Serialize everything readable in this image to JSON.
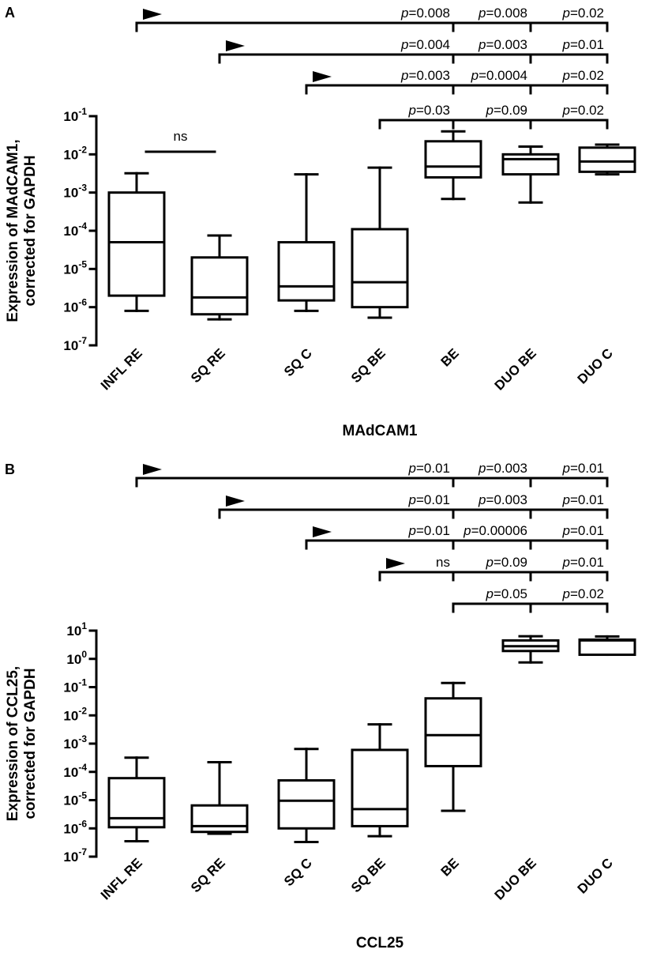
{
  "chart_data": [
    {
      "panel": "A",
      "type": "box",
      "xlabel": "MAdCAM1",
      "ylabel_line1": "Expression of MAdCAM1,",
      "ylabel_line2": "corrected for GAPDH",
      "yscale": "log10",
      "ylim_exp": [
        -7,
        -1
      ],
      "yticks": [
        {
          "base": "10",
          "exp": "-1"
        },
        {
          "base": "10",
          "exp": "-2"
        },
        {
          "base": "10",
          "exp": "-3"
        },
        {
          "base": "10",
          "exp": "-4"
        },
        {
          "base": "10",
          "exp": "-5"
        },
        {
          "base": "10",
          "exp": "-6"
        },
        {
          "base": "10",
          "exp": "-7"
        }
      ],
      "categories": [
        "INFL RE",
        "SQ RE",
        "SQ C",
        "SQ BE",
        "BE",
        "DUO BE",
        "DUO C"
      ],
      "boxes": [
        {
          "min": 8e-07,
          "q1": 2e-06,
          "median": 5e-05,
          "q3": 0.001,
          "max": 0.0032
        },
        {
          "min": 4.8e-07,
          "q1": 6.5e-07,
          "median": 1.8e-06,
          "q3": 2e-05,
          "max": 7.5e-05
        },
        {
          "min": 8e-07,
          "q1": 1.5e-06,
          "median": 3.5e-06,
          "q3": 5e-05,
          "max": 0.003
        },
        {
          "min": 5.3e-07,
          "q1": 1e-06,
          "median": 4.5e-06,
          "q3": 0.00011,
          "max": 0.0045
        },
        {
          "min": 0.00068,
          "q1": 0.0025,
          "median": 0.0048,
          "q3": 0.022,
          "max": 0.04
        },
        {
          "min": 0.00055,
          "q1": 0.003,
          "median": 0.0075,
          "q3": 0.01,
          "max": 0.016
        },
        {
          "min": 0.003,
          "q1": 0.0035,
          "median": 0.0065,
          "q3": 0.015,
          "max": 0.018
        }
      ],
      "annotations": [
        {
          "kind": "ns",
          "from": 0,
          "to": 1,
          "label": "ns"
        }
      ],
      "comparisons": [
        {
          "from": 0,
          "arrow": true,
          "labels": [
            {
              "it": "p",
              "val": "=0.008"
            },
            {
              "it": "p",
              "val": "=0.008"
            },
            {
              "it": "p",
              "val": "=0.02"
            }
          ]
        },
        {
          "from": 1,
          "arrow": true,
          "labels": [
            {
              "it": "p",
              "val": "=0.004"
            },
            {
              "it": "p",
              "val": "=0.003"
            },
            {
              "it": "p",
              "val": "=0.01"
            }
          ]
        },
        {
          "from": 2,
          "arrow": true,
          "labels": [
            {
              "it": "p",
              "val": "=0.003"
            },
            {
              "it": "p",
              "val": "=0.0004"
            },
            {
              "it": "p",
              "val": "=0.02"
            }
          ]
        },
        {
          "from": 3,
          "arrow": false,
          "labels": [
            {
              "it": "p",
              "val": "=0.03"
            },
            {
              "it": "p",
              "val": "=0.09"
            },
            {
              "it": "p",
              "val": "=0.02"
            }
          ]
        }
      ]
    },
    {
      "panel": "B",
      "type": "box",
      "xlabel": "CCL25",
      "ylabel_line1": "Expression of CCL25,",
      "ylabel_line2": "corrected for GAPDH",
      "yscale": "log10",
      "ylim_exp": [
        -7,
        1
      ],
      "yticks": [
        {
          "base": "10",
          "exp": "1"
        },
        {
          "base": "10",
          "exp": "0"
        },
        {
          "base": "10",
          "exp": "-1"
        },
        {
          "base": "10",
          "exp": "-2"
        },
        {
          "base": "10",
          "exp": "-3"
        },
        {
          "base": "10",
          "exp": "-4"
        },
        {
          "base": "10",
          "exp": "-5"
        },
        {
          "base": "10",
          "exp": "-6"
        },
        {
          "base": "10",
          "exp": "-7"
        }
      ],
      "categories": [
        "INFL RE",
        "SQ RE",
        "SQ C",
        "SQ BE",
        "BE",
        "DUO BE",
        "DUO C"
      ],
      "boxes": [
        {
          "min": 3.5e-07,
          "q1": 1.1e-06,
          "median": 2.3e-06,
          "q3": 6e-05,
          "max": 0.00032
        },
        {
          "min": 6.5e-07,
          "q1": 7.5e-07,
          "median": 1.2e-06,
          "q3": 6.5e-06,
          "max": 0.00022
        },
        {
          "min": 3.3e-07,
          "q1": 1e-06,
          "median": 9.5e-06,
          "q3": 5e-05,
          "max": 0.00065
        },
        {
          "min": 5.3e-07,
          "q1": 1.2e-06,
          "median": 4.8e-06,
          "q3": 0.0006,
          "max": 0.0048
        },
        {
          "min": 4.2e-06,
          "q1": 0.00016,
          "median": 0.002,
          "q3": 0.04,
          "max": 0.14
        },
        {
          "min": 0.75,
          "q1": 1.9,
          "median": 2.8,
          "q3": 4.5,
          "max": 6.3
        },
        {
          "min": 1.4,
          "q1": 1.4,
          "median": 4.5,
          "q3": 4.8,
          "max": 6.2
        }
      ],
      "annotations": [],
      "comparisons": [
        {
          "from": 0,
          "arrow": true,
          "labels": [
            {
              "it": "p",
              "val": "=0.01"
            },
            {
              "it": "p",
              "val": "=0.003"
            },
            {
              "it": "p",
              "val": "=0.01"
            }
          ]
        },
        {
          "from": 1,
          "arrow": true,
          "labels": [
            {
              "it": "p",
              "val": "=0.01"
            },
            {
              "it": "p",
              "val": "=0.003"
            },
            {
              "it": "p",
              "val": "=0.01"
            }
          ]
        },
        {
          "from": 2,
          "arrow": true,
          "labels": [
            {
              "it": "p",
              "val": "=0.01"
            },
            {
              "it": "p",
              "val": "=0.00006"
            },
            {
              "it": "p",
              "val": "=0.01"
            }
          ]
        },
        {
          "from": 3,
          "arrow": true,
          "labels": [
            {
              "it": "",
              "val": "ns"
            },
            {
              "it": "p",
              "val": "=0.09"
            },
            {
              "it": "p",
              "val": "=0.01"
            }
          ]
        },
        {
          "from": 4,
          "arrow": false,
          "labels": [
            {
              "it": "p",
              "val": "=0.05"
            },
            {
              "it": "p",
              "val": "=0.02"
            }
          ]
        }
      ]
    }
  ]
}
